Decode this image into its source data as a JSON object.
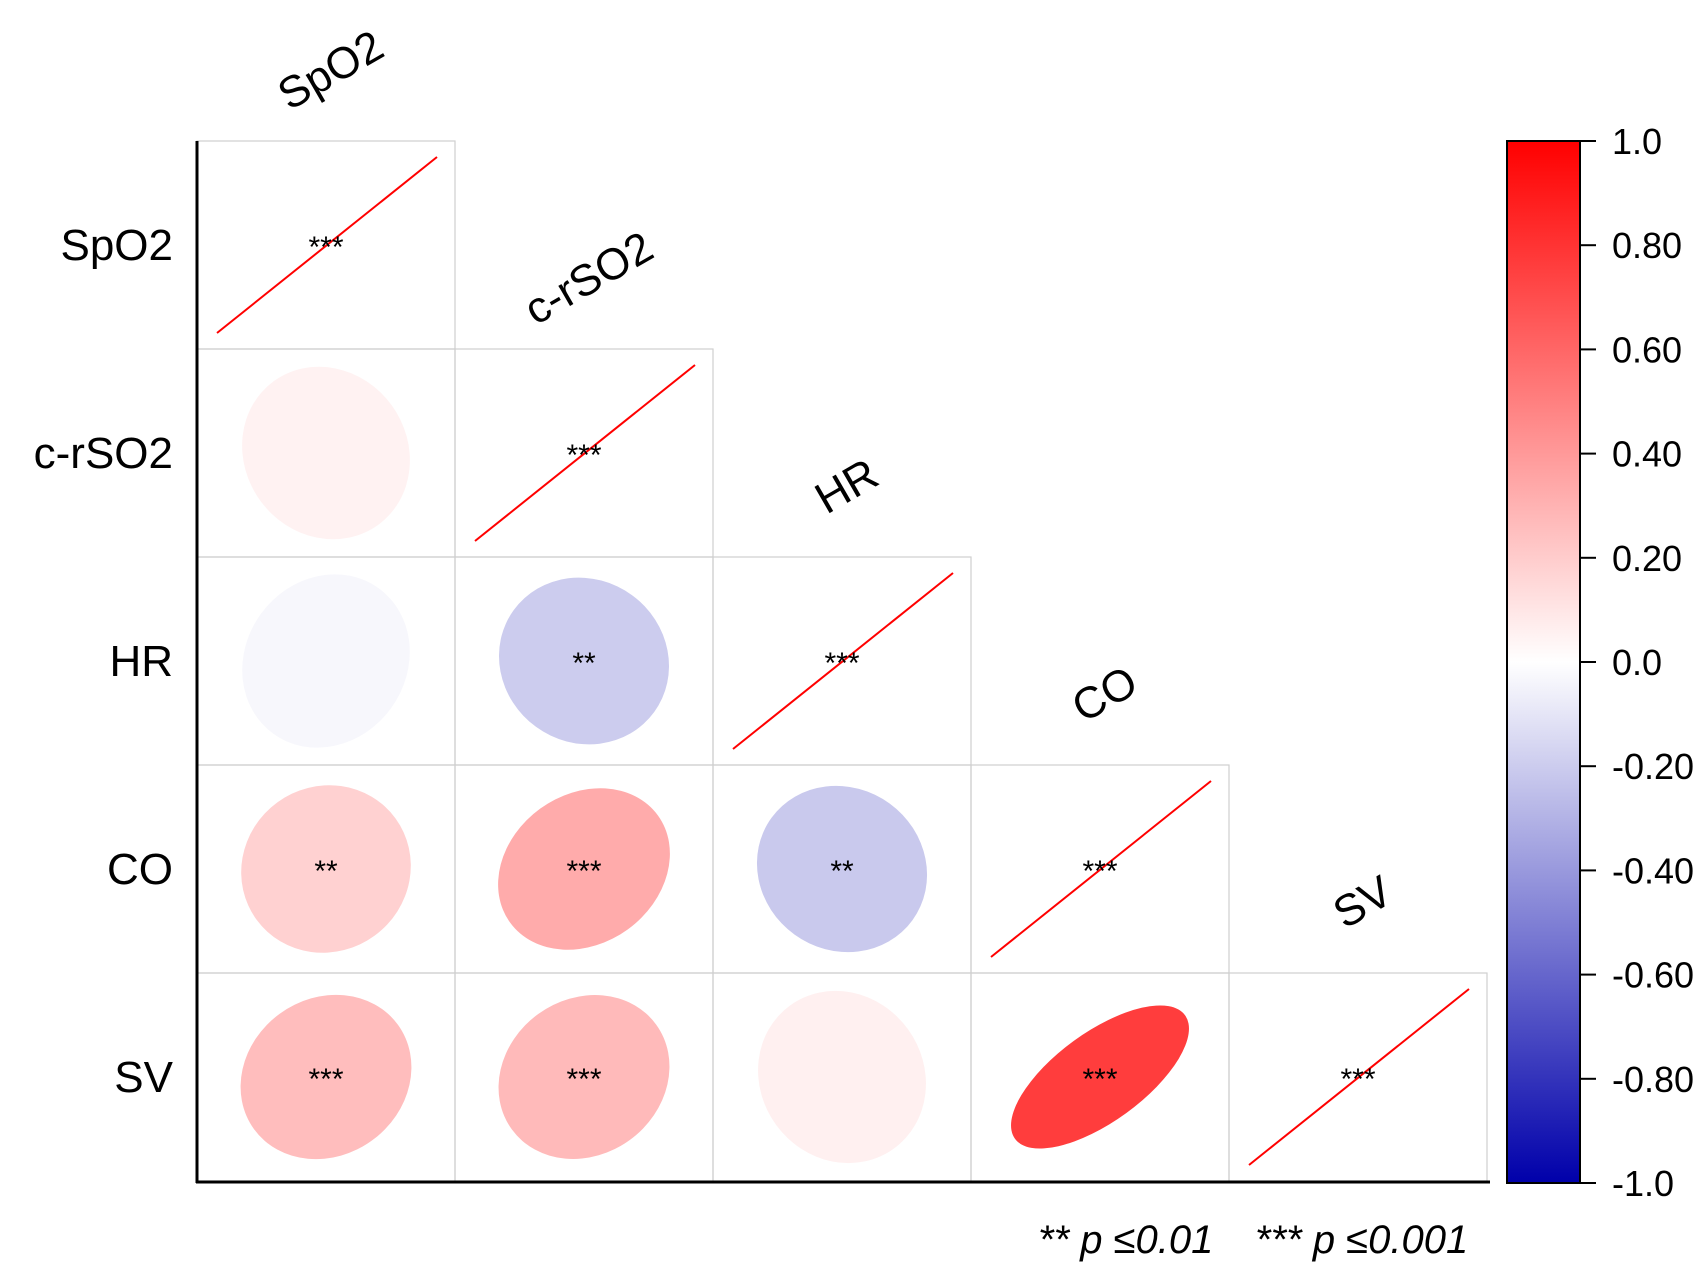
{
  "chart_data": {
    "type": "heatmap",
    "subtype": "correlation-ellipse-lower-triangle",
    "variables": [
      "SpO2",
      "c-rSO2",
      "HR",
      "CO",
      "SV"
    ],
    "cells": [
      {
        "row": "SpO2",
        "col": "SpO2",
        "r": 1.0,
        "sig": "***"
      },
      {
        "row": "c-rSO2",
        "col": "SpO2",
        "r": 0.05,
        "sig": ""
      },
      {
        "row": "c-rSO2",
        "col": "c-rSO2",
        "r": 1.0,
        "sig": "***"
      },
      {
        "row": "HR",
        "col": "SpO2",
        "r": -0.03,
        "sig": ""
      },
      {
        "row": "HR",
        "col": "c-rSO2",
        "r": -0.2,
        "sig": "**"
      },
      {
        "row": "HR",
        "col": "HR",
        "r": 1.0,
        "sig": "***"
      },
      {
        "row": "CO",
        "col": "SpO2",
        "r": 0.18,
        "sig": "**"
      },
      {
        "row": "CO",
        "col": "c-rSO2",
        "r": 0.33,
        "sig": "***"
      },
      {
        "row": "CO",
        "col": "HR",
        "r": -0.21,
        "sig": "**"
      },
      {
        "row": "CO",
        "col": "CO",
        "r": 1.0,
        "sig": "***"
      },
      {
        "row": "SV",
        "col": "SpO2",
        "r": 0.26,
        "sig": "***"
      },
      {
        "row": "SV",
        "col": "c-rSO2",
        "r": 0.27,
        "sig": "***"
      },
      {
        "row": "SV",
        "col": "HR",
        "r": 0.06,
        "sig": ""
      },
      {
        "row": "SV",
        "col": "CO",
        "r": 0.76,
        "sig": "***"
      },
      {
        "row": "SV",
        "col": "SV",
        "r": 1.0,
        "sig": "***"
      }
    ],
    "colorbar": {
      "range": [
        -1.0,
        1.0
      ],
      "ticks": [
        "1.0",
        "0.80",
        "0.60",
        "0.40",
        "0.20",
        "0.0",
        "-0.20",
        "-0.40",
        "-0.60",
        "-0.80",
        "-1.0"
      ],
      "colors": {
        "negative": "#0000aa",
        "zero": "#ffffff",
        "positive": "#ff0000"
      },
      "position": "right"
    },
    "grid": true,
    "diagonal_line_color": "#ff0000"
  },
  "legend": {
    "double_star": "** p ≤0.01",
    "triple_star": "*** p ≤0.001"
  }
}
